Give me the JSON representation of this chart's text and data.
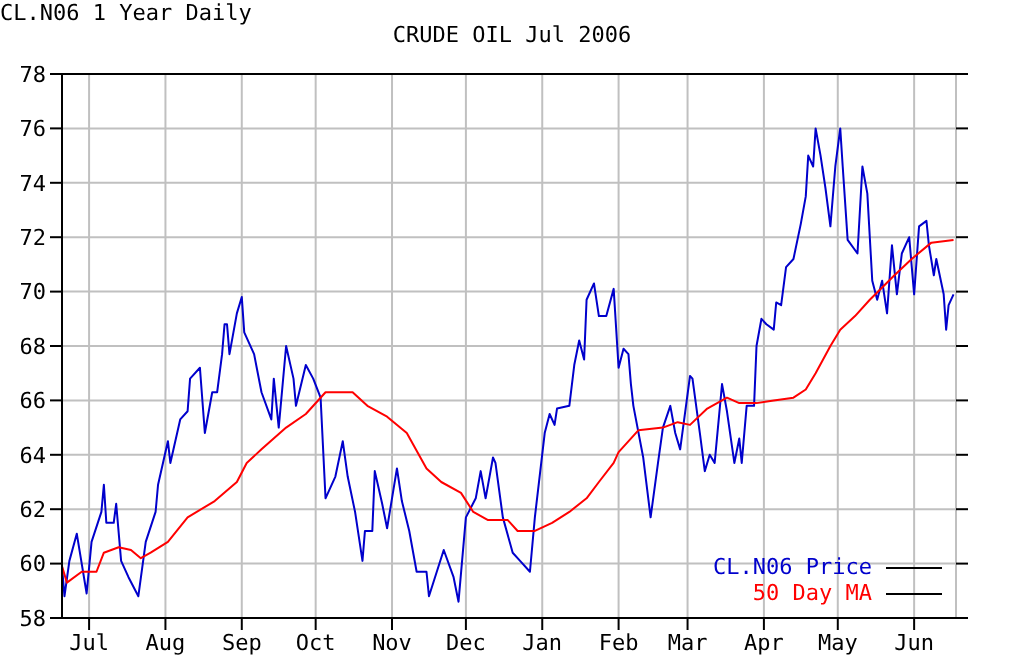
{
  "chart_data": {
    "type": "line",
    "title": "CRUDE OIL Jul 2006",
    "subtitle": "CL.N06 1 Year Daily",
    "xlim": [
      "2005-06-20",
      "2006-06-18"
    ],
    "xticks": [
      {
        "value": "2005-07-01",
        "label": "Jul"
      },
      {
        "value": "2005-08-01",
        "label": "Aug"
      },
      {
        "value": "2005-09-01",
        "label": "Sep"
      },
      {
        "value": "2005-10-01",
        "label": "Oct"
      },
      {
        "value": "2005-11-01",
        "label": "Nov"
      },
      {
        "value": "2005-12-01",
        "label": "Dec"
      },
      {
        "value": "2006-01-01",
        "label": "Jan"
      },
      {
        "value": "2006-02-01",
        "label": "Feb"
      },
      {
        "value": "2006-03-01",
        "label": "Mar"
      },
      {
        "value": "2006-04-01",
        "label": "Apr"
      },
      {
        "value": "2006-05-01",
        "label": "May"
      },
      {
        "value": "2006-06-01",
        "label": "Jun"
      }
    ],
    "ylim": [
      58,
      78
    ],
    "yticks": [
      58,
      60,
      62,
      64,
      66,
      68,
      70,
      72,
      74,
      76,
      78
    ],
    "grid": true,
    "legend": "bottom right",
    "series": [
      {
        "name": "CL.N06 Price",
        "color": "#0000cc",
        "x": [
          "2005-06-20",
          "2005-06-21",
          "2005-06-23",
          "2005-06-26",
          "2005-06-30",
          "2005-07-02",
          "2005-07-06",
          "2005-07-07",
          "2005-07-08",
          "2005-07-11",
          "2005-07-12",
          "2005-07-14",
          "2005-07-17",
          "2005-07-21",
          "2005-07-24",
          "2005-07-28",
          "2005-07-29",
          "2005-08-02",
          "2005-08-03",
          "2005-08-07",
          "2005-08-10",
          "2005-08-11",
          "2005-08-15",
          "2005-08-17",
          "2005-08-20",
          "2005-08-22",
          "2005-08-24",
          "2005-08-25",
          "2005-08-26",
          "2005-08-27",
          "2005-08-30",
          "2005-09-01",
          "2005-09-02",
          "2005-09-06",
          "2005-09-09",
          "2005-09-13",
          "2005-09-14",
          "2005-09-16",
          "2005-09-19",
          "2005-09-22",
          "2005-09-23",
          "2005-09-27",
          "2005-09-30",
          "2005-10-03",
          "2005-10-05",
          "2005-10-09",
          "2005-10-12",
          "2005-10-14",
          "2005-10-17",
          "2005-10-20",
          "2005-10-21",
          "2005-10-24",
          "2005-10-25",
          "2005-10-28",
          "2005-10-30",
          "2005-11-03",
          "2005-11-05",
          "2005-11-08",
          "2005-11-11",
          "2005-11-15",
          "2005-11-16",
          "2005-11-22",
          "2005-11-26",
          "2005-11-28",
          "2005-12-01",
          "2005-12-05",
          "2005-12-07",
          "2005-12-09",
          "2005-12-12",
          "2005-12-13",
          "2005-12-16",
          "2005-12-20",
          "2005-12-23",
          "2005-12-27",
          "2005-12-29",
          "2006-01-02",
          "2006-01-04",
          "2006-01-06",
          "2006-01-07",
          "2006-01-12",
          "2006-01-14",
          "2006-01-16",
          "2006-01-18",
          "2006-01-19",
          "2006-01-22",
          "2006-01-24",
          "2006-01-27",
          "2006-01-30",
          "2006-02-01",
          "2006-02-03",
          "2006-02-05",
          "2006-02-06",
          "2006-02-07",
          "2006-02-11",
          "2006-02-14",
          "2006-02-17",
          "2006-02-19",
          "2006-02-22",
          "2006-02-24",
          "2006-02-26",
          "2006-03-02",
          "2006-03-03",
          "2006-03-06",
          "2006-03-08",
          "2006-03-10",
          "2006-03-12",
          "2006-03-15",
          "2006-03-17",
          "2006-03-20",
          "2006-03-22",
          "2006-03-23",
          "2006-03-25",
          "2006-03-28",
          "2006-03-29",
          "2006-03-31",
          "2006-04-02",
          "2006-04-05",
          "2006-04-06",
          "2006-04-08",
          "2006-04-10",
          "2006-04-13",
          "2006-04-16",
          "2006-04-18",
          "2006-04-19",
          "2006-04-21",
          "2006-04-22",
          "2006-04-24",
          "2006-04-26",
          "2006-04-28",
          "2006-04-30",
          "2006-05-02",
          "2006-05-03",
          "2006-05-05",
          "2006-05-09",
          "2006-05-11",
          "2006-05-13",
          "2006-05-15",
          "2006-05-17",
          "2006-05-19",
          "2006-05-21",
          "2006-05-23",
          "2006-05-25",
          "2006-05-27",
          "2006-05-30",
          "2006-06-01",
          "2006-06-03",
          "2006-06-06",
          "2006-06-07",
          "2006-06-09",
          "2006-06-10",
          "2006-06-13",
          "2006-06-14",
          "2006-06-15",
          "2006-06-17"
        ],
        "values": [
          59.9,
          58.8,
          60.1,
          61.1,
          58.9,
          60.8,
          61.9,
          62.9,
          61.5,
          61.5,
          62.2,
          60.1,
          59.5,
          58.8,
          60.8,
          61.9,
          62.9,
          64.5,
          63.7,
          65.3,
          65.6,
          66.8,
          67.2,
          64.8,
          66.3,
          66.3,
          67.7,
          68.8,
          68.8,
          67.7,
          69.2,
          69.8,
          68.5,
          67.7,
          66.3,
          65.3,
          66.8,
          65.0,
          68.0,
          66.8,
          65.8,
          67.3,
          66.8,
          66.1,
          62.4,
          63.2,
          64.5,
          63.2,
          61.9,
          60.1,
          61.2,
          61.2,
          63.4,
          62.2,
          61.3,
          63.5,
          62.3,
          61.2,
          59.7,
          59.7,
          58.8,
          60.5,
          59.5,
          58.6,
          61.7,
          62.4,
          63.4,
          62.4,
          63.9,
          63.7,
          61.7,
          60.4,
          60.1,
          59.7,
          61.7,
          64.8,
          65.5,
          65.1,
          65.7,
          65.8,
          67.3,
          68.2,
          67.5,
          69.7,
          70.3,
          69.1,
          69.1,
          70.1,
          67.2,
          67.9,
          67.7,
          66.6,
          65.8,
          63.9,
          61.7,
          63.7,
          65.0,
          65.8,
          64.8,
          64.2,
          66.9,
          66.8,
          64.8,
          63.4,
          64.0,
          63.7,
          66.6,
          65.6,
          63.7,
          64.6,
          63.7,
          65.8,
          65.8,
          68.0,
          69.0,
          68.8,
          68.6,
          69.6,
          69.5,
          70.9,
          71.2,
          72.5,
          73.5,
          75.0,
          74.6,
          76.0,
          75.0,
          73.8,
          72.4,
          74.6,
          76.0,
          74.6,
          71.9,
          71.4,
          74.6,
          73.6,
          70.4,
          69.7,
          70.4,
          69.2,
          71.7,
          69.9,
          71.4,
          72.0,
          69.9,
          72.4,
          72.6,
          71.7,
          70.6,
          71.2,
          69.9,
          68.6,
          69.5,
          69.9
        ]
      },
      {
        "name": "50 Day MA",
        "color": "#ff0000",
        "x": [
          "2005-06-20",
          "2005-06-22",
          "2005-06-28",
          "2005-07-02",
          "2005-07-04",
          "2005-07-07",
          "2005-07-13",
          "2005-07-18",
          "2005-07-22",
          "2005-07-26",
          "2005-08-02",
          "2005-08-10",
          "2005-08-21",
          "2005-08-30",
          "2005-09-03",
          "2005-09-09",
          "2005-09-19",
          "2005-09-27",
          "2005-10-05",
          "2005-10-10",
          "2005-10-16",
          "2005-10-22",
          "2005-10-30",
          "2005-11-07",
          "2005-11-15",
          "2005-11-21",
          "2005-11-29",
          "2005-12-04",
          "2005-12-10",
          "2005-12-18",
          "2005-12-22",
          "2005-12-29",
          "2006-01-05",
          "2006-01-12",
          "2006-01-19",
          "2006-01-24",
          "2006-01-30",
          "2006-02-01",
          "2006-02-09",
          "2006-02-19",
          "2006-02-25",
          "2006-03-02",
          "2006-03-09",
          "2006-03-17",
          "2006-03-22",
          "2006-03-29",
          "2006-04-05",
          "2006-04-13",
          "2006-04-18",
          "2006-04-22",
          "2006-04-28",
          "2006-05-02",
          "2006-05-08",
          "2006-05-14",
          "2006-05-24",
          "2006-05-31",
          "2006-06-08",
          "2006-06-17"
        ],
        "values": [
          59.9,
          59.3,
          59.7,
          59.7,
          59.7,
          60.4,
          60.6,
          60.5,
          60.2,
          60.4,
          60.8,
          61.7,
          62.3,
          63.0,
          63.7,
          64.2,
          65.0,
          65.5,
          66.3,
          66.3,
          66.3,
          65.8,
          65.4,
          64.8,
          63.5,
          63.0,
          62.6,
          61.9,
          61.6,
          61.6,
          61.2,
          61.2,
          61.5,
          61.9,
          62.4,
          63.0,
          63.7,
          64.1,
          64.9,
          65.0,
          65.2,
          65.1,
          65.7,
          66.1,
          65.9,
          65.9,
          66.0,
          66.1,
          66.4,
          67.0,
          68.0,
          68.6,
          69.1,
          69.7,
          70.6,
          71.2,
          71.8,
          71.9
        ]
      }
    ]
  }
}
